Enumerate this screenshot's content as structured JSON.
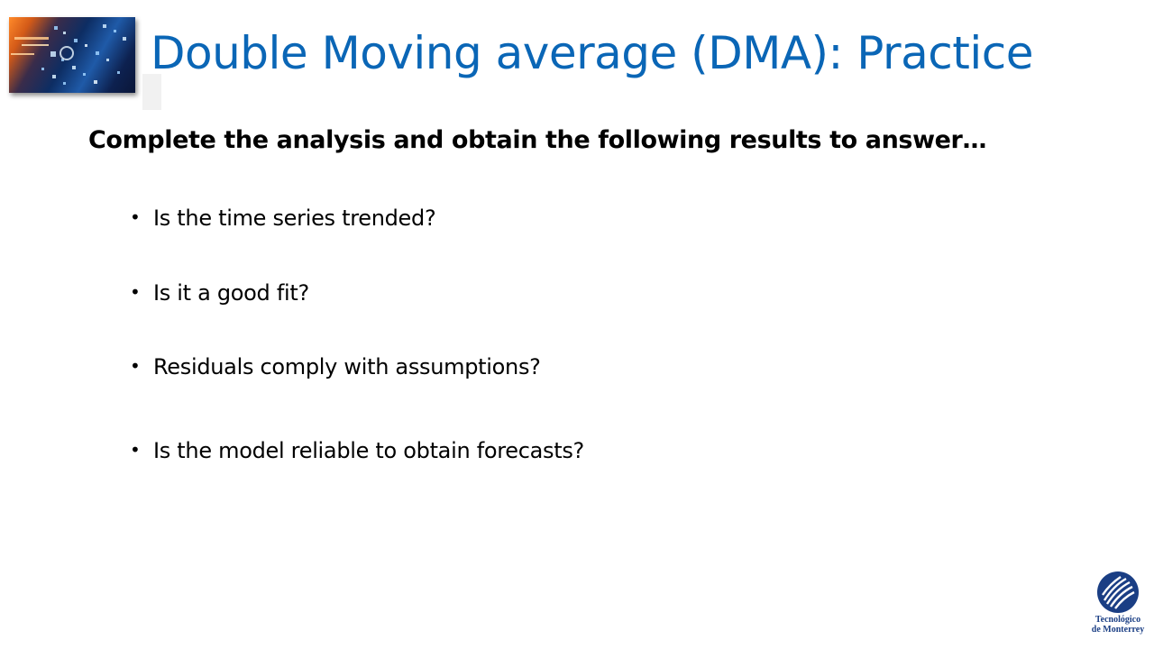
{
  "slide": {
    "title": "Double Moving average (DMA): Practice",
    "instruction": "Complete the analysis and obtain the following results to answer…",
    "bullet_glyph": "•",
    "bullets": [
      "Is the time series trended?",
      "Is it a good fit?",
      "Residuals comply with assumptions?",
      "Is the model reliable to obtain forecasts?"
    ]
  },
  "logo": {
    "line1": "Tecnológico",
    "line2": "de Monterrey",
    "color": "#1a3e84"
  },
  "colors": {
    "title": "#0a66b6",
    "text": "#000000"
  }
}
